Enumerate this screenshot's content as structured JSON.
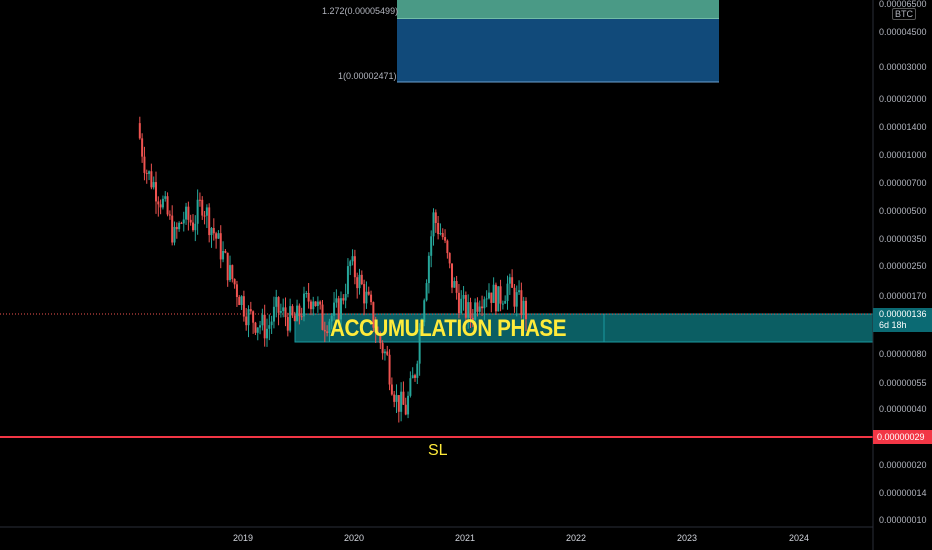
{
  "chart_data": {
    "type": "candlestick",
    "quote_currency": "BTC",
    "y_scale": "log",
    "y_ticks": [
      "0.00006500",
      "0.00004500",
      "0.00003000",
      "0.00002000",
      "0.00001400",
      "0.00001000",
      "0.00000700",
      "0.00000500",
      "0.00000350",
      "0.00000250",
      "0.00000170",
      "0.00000080",
      "0.00000055",
      "0.00000040",
      "0.00000020",
      "0.00000014",
      "0.00000010"
    ],
    "x_ticks": [
      "2019",
      "2020",
      "2021",
      "2022",
      "2023",
      "2024"
    ],
    "current_price": "0.00000136",
    "countdown": "6d 18h",
    "stop_loss_price": "0.00000029",
    "annotations": {
      "accumulation_text": "ACCUMULATION PHASE",
      "sl_text": "SL",
      "fib_level_top": "1.272(0.00005499)",
      "fib_level_bottom": "1(0.00002471)"
    },
    "candles_approx": [
      {
        "date": "2018-07",
        "close": 1.4e-05
      },
      {
        "date": "2018-08",
        "close": 8e-06
      },
      {
        "date": "2018-09",
        "close": 6.5e-06
      },
      {
        "date": "2018-10",
        "close": 5e-06
      },
      {
        "date": "2018-11",
        "close": 3.5e-06
      },
      {
        "date": "2018-12",
        "close": 4.5e-06
      },
      {
        "date": "2019-01",
        "close": 4.2e-06
      },
      {
        "date": "2019-02",
        "close": 5.5e-06
      },
      {
        "date": "2019-03",
        "close": 4e-06
      },
      {
        "date": "2019-04",
        "close": 3e-06
      },
      {
        "date": "2019-05",
        "close": 2.2e-06
      },
      {
        "date": "2019-06",
        "close": 1.7e-06
      },
      {
        "date": "2019-07",
        "close": 1.3e-06
      },
      {
        "date": "2019-08",
        "close": 1.2e-06
      },
      {
        "date": "2019-09",
        "close": 1.1e-06
      },
      {
        "date": "2019-10",
        "close": 1.4e-06
      },
      {
        "date": "2019-11",
        "close": 1.3e-06
      },
      {
        "date": "2019-12",
        "close": 1.2e-06
      },
      {
        "date": "2020-01",
        "close": 1.5e-06
      },
      {
        "date": "2020-02",
        "close": 1.7e-06
      },
      {
        "date": "2020-03",
        "close": 1.2e-06
      },
      {
        "date": "2020-04",
        "close": 1.3e-06
      },
      {
        "date": "2020-05",
        "close": 1.5e-06
      },
      {
        "date": "2020-06",
        "close": 2.5e-06
      },
      {
        "date": "2020-07",
        "close": 2e-06
      },
      {
        "date": "2020-08",
        "close": 1.5e-06
      },
      {
        "date": "2020-09",
        "close": 1e-06
      },
      {
        "date": "2020-10",
        "close": 7.5e-07
      },
      {
        "date": "2020-11",
        "close": 4.5e-07
      },
      {
        "date": "2020-12",
        "close": 4e-07
      },
      {
        "date": "2021-01",
        "close": 6.5e-07
      },
      {
        "date": "2021-02",
        "close": 1.8e-06
      },
      {
        "date": "2021-03",
        "close": 4.5e-06
      },
      {
        "date": "2021-04",
        "close": 3.5e-06
      },
      {
        "date": "2021-05",
        "close": 2e-06
      },
      {
        "date": "2021-06",
        "close": 1.5e-06
      },
      {
        "date": "2021-07",
        "close": 1.3e-06
      },
      {
        "date": "2021-08",
        "close": 1.7e-06
      },
      {
        "date": "2021-09",
        "close": 1.8e-06
      },
      {
        "date": "2021-10",
        "close": 1.6e-06
      },
      {
        "date": "2021-11",
        "close": 1.9e-06
      },
      {
        "date": "2021-12",
        "close": 1.6e-06
      },
      {
        "date": "2022-01",
        "close": 1.36e-06
      }
    ]
  },
  "colors": {
    "background": "#000000",
    "up_candle": "#26a69a",
    "down_candle": "#ef5350",
    "accumulation_zone": "#0b5e63",
    "fib_top_zone": "#4a9a86",
    "fib_bottom_zone": "#114a7a",
    "stop_loss_line": "#f23645",
    "annotation_text": "#ffeb3b"
  }
}
